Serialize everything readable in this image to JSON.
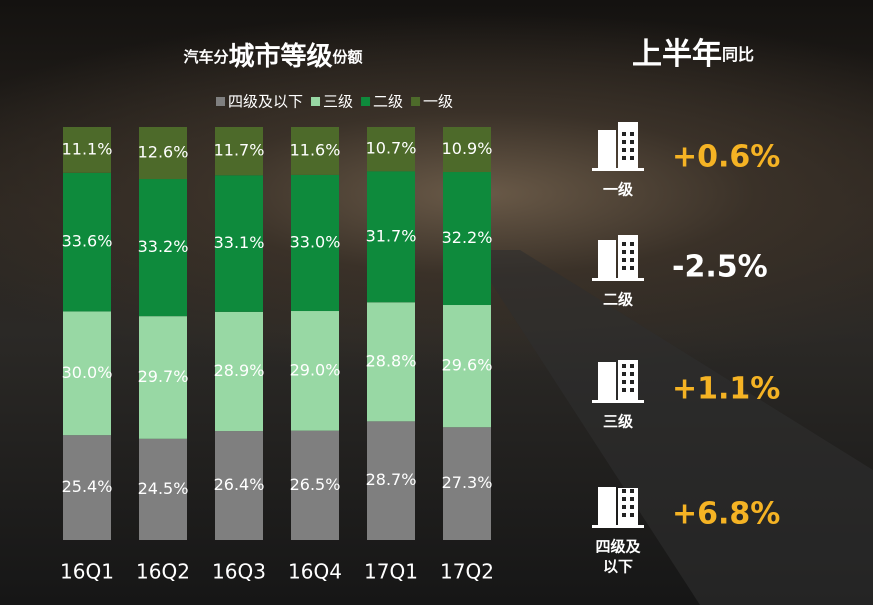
{
  "chart_data": {
    "type": "stacked-bar",
    "title_parts": [
      "汽车分",
      "城市等级",
      "份额"
    ],
    "categories": [
      "16Q1",
      "16Q2",
      "16Q3",
      "16Q4",
      "17Q1",
      "17Q2"
    ],
    "series": [
      {
        "name": "四级及以下",
        "color": "#7f7f7f",
        "values": [
          25.4,
          24.5,
          26.4,
          26.5,
          28.7,
          27.3
        ],
        "value_labels": [
          "25.4%",
          "24.5%",
          "26.4%",
          "26.5%",
          "28.7%",
          "27.3%"
        ]
      },
      {
        "name": "三级",
        "color": "#98d8a4",
        "values": [
          30.0,
          29.7,
          28.9,
          29.0,
          28.8,
          29.6
        ],
        "value_labels": [
          "30.0%",
          "29.7%",
          "28.9%",
          "29.0%",
          "28.8%",
          "29.6%"
        ]
      },
      {
        "name": "二级",
        "color": "#0e8a3c",
        "values": [
          33.6,
          33.2,
          33.1,
          33.0,
          31.7,
          32.2
        ],
        "value_labels": [
          "33.6%",
          "33.2%",
          "33.1%",
          "33.0%",
          "31.7%",
          "32.2%"
        ]
      },
      {
        "name": "一级",
        "color": "#4d6a2a",
        "values": [
          11.1,
          12.6,
          11.7,
          11.6,
          10.7,
          10.9
        ],
        "value_labels": [
          "11.1%",
          "12.6%",
          "11.7%",
          "11.6%",
          "10.7%",
          "10.9%"
        ]
      }
    ]
  },
  "side_panel": {
    "title_parts": [
      "上半年",
      "同比"
    ],
    "items": [
      {
        "label_lines": [
          "一级"
        ],
        "value": "+0.6%",
        "color": "#f5b324"
      },
      {
        "label_lines": [
          "二级"
        ],
        "value": "-2.5%",
        "color": "#ffffff"
      },
      {
        "label_lines": [
          "三级"
        ],
        "value": "+1.1%",
        "color": "#f5b324"
      },
      {
        "label_lines": [
          "四级及",
          "以下"
        ],
        "value": "+6.8%",
        "color": "#f5b324"
      }
    ]
  }
}
